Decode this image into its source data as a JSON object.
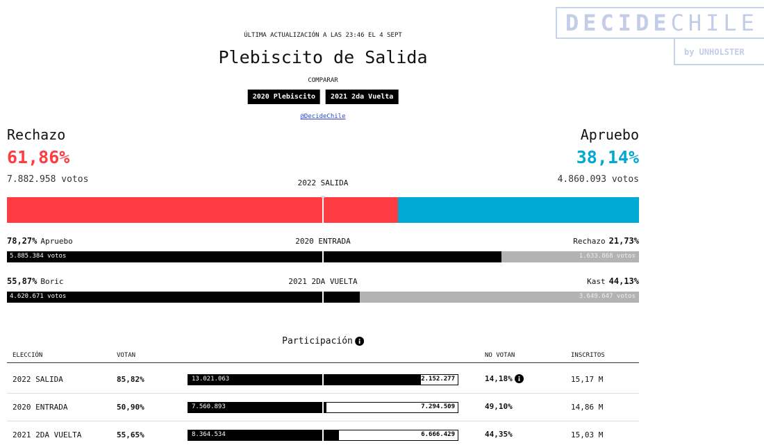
{
  "header": {
    "updated": "ÚLTIMA ACTUALIZACIÓN A LAS 23:46 EL 4 SEPT",
    "title": "Plebiscito de Salida",
    "compare_label": "COMPARAR",
    "buttons": [
      "2020 Plebiscito",
      "2021 2da Vuelta"
    ],
    "link": "@DecideChile"
  },
  "logo": {
    "decide": "DECIDE",
    "chile": "CHILE",
    "by": "by UNHOLSTER"
  },
  "main": {
    "label": "2022 SALIDA",
    "left": {
      "name": "Rechazo",
      "pct_label": "61,86%",
      "pct": 61.86,
      "votes": "7.882.958 votos",
      "color": "#ff3c41"
    },
    "right": {
      "name": "Apruebo",
      "pct_label": "38,14%",
      "pct": 38.14,
      "votes": "4.860.093 votos",
      "color": "#00a8d4"
    }
  },
  "comparisons": [
    {
      "label": "2020 ENTRADA",
      "left_pct_label": "78,27%",
      "left_pct": 78.27,
      "left_name": "Apruebo",
      "left_votes": "5.885.384 votos",
      "right_name": "Rechazo",
      "right_pct_label": "21,73%",
      "right_pct": 21.73,
      "right_votes": "1.633.868 votos"
    },
    {
      "label": "2021 2DA VUELTA",
      "left_pct_label": "55,87%",
      "left_pct": 55.87,
      "left_name": "Boric",
      "left_votes": "4.620.671 votos",
      "right_name": "Kast",
      "right_pct_label": "44,13%",
      "right_pct": 44.13,
      "right_votes": "3.649.647 votos"
    }
  ],
  "participation": {
    "title": "Participación",
    "headers": [
      "ELECCIÓN",
      "VOTAN",
      "NO VOTAN",
      "INSCRITOS"
    ],
    "rows": [
      {
        "election": "2022 SALIDA",
        "votan_label": "85,82%",
        "votan": 85.82,
        "voters": "13.021.063",
        "non_voters": "2.152.277",
        "no_votan_label": "14,18%",
        "no_votan": 14.18,
        "inscritos": "15,17 M"
      },
      {
        "election": "2020 ENTRADA",
        "votan_label": "50,90%",
        "votan": 50.9,
        "voters": "7.560.893",
        "non_voters": "7.294.509",
        "no_votan_label": "49,10%",
        "no_votan": 49.1,
        "inscritos": "14,86 M"
      },
      {
        "election": "2021 2DA VUELTA",
        "votan_label": "55,65%",
        "votan": 55.65,
        "voters": "8.364.534",
        "non_voters": "6.666.429",
        "no_votan_label": "44,35%",
        "no_votan": 44.35,
        "inscritos": "15,03 M"
      }
    ]
  }
}
